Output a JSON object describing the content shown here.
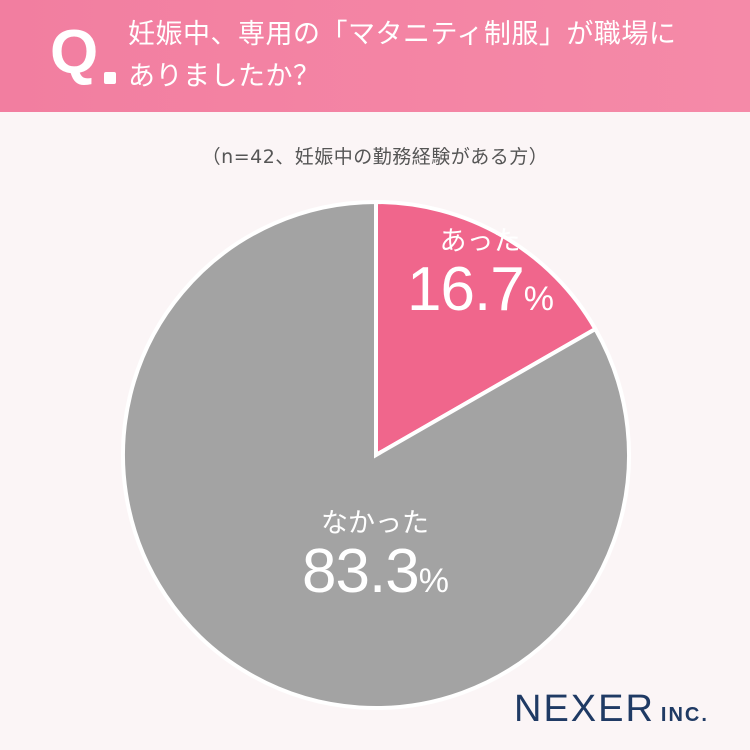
{
  "header": {
    "q_mark": "Q",
    "question_line1": "妊娠中、専用の「マタニティ制服」が職場に",
    "question_line2": "ありましたか？"
  },
  "sample_note": "（n=42、妊娠中の勤務経験がある方）",
  "chart_data": {
    "type": "pie",
    "title": "妊娠中、専用の「マタニティ制服」が職場にありましたか？",
    "subtitle": "（n=42、妊娠中の勤務経験がある方）",
    "slices": [
      {
        "label": "あった",
        "value": 16.7,
        "display": "16.7",
        "color": "#f0668c"
      },
      {
        "label": "なかった",
        "value": 83.3,
        "display": "83.3",
        "color": "#a3a3a3"
      }
    ],
    "unit": "%",
    "start_angle": "12 o'clock, clockwise"
  },
  "logo": {
    "main": "NEXER",
    "suffix": "INC."
  }
}
